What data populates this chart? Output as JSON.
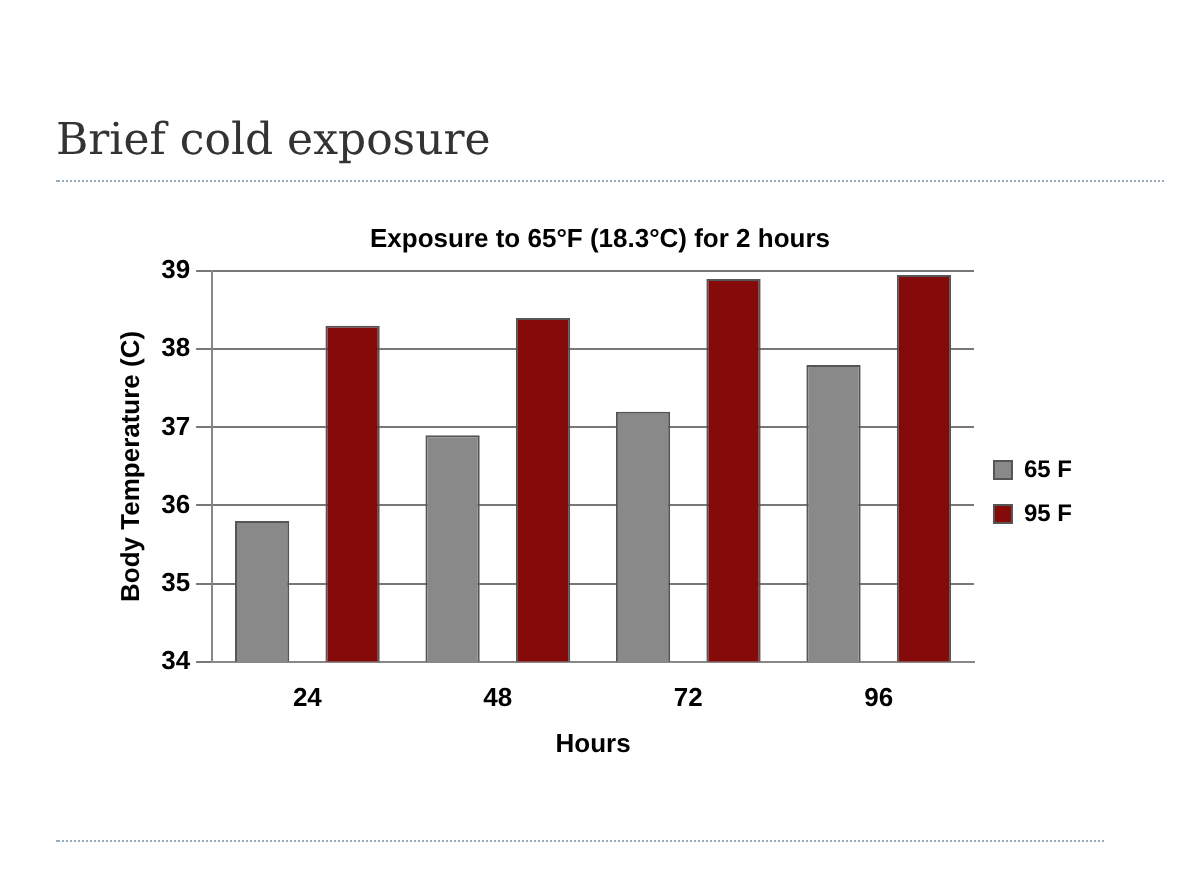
{
  "chart_data": {
    "type": "bar",
    "title": "Brief cold exposure",
    "subtitle": "Exposure to 65°F (18.3°C) for 2 hours",
    "xlabel": "Hours",
    "ylabel": "Body Temperature (C)",
    "categories": [
      "24",
      "48",
      "72",
      "96"
    ],
    "series": [
      {
        "name": "65 F",
        "color": "#898989",
        "values": [
          35.8,
          36.9,
          37.2,
          37.8
        ]
      },
      {
        "name": "95 F",
        "color": "#850b0b",
        "values": [
          38.3,
          38.4,
          38.9,
          38.95
        ]
      }
    ],
    "ylim": [
      34,
      39
    ],
    "yticks": [
      34,
      35,
      36,
      37,
      38,
      39
    ],
    "grid": "y",
    "legend": "right"
  }
}
